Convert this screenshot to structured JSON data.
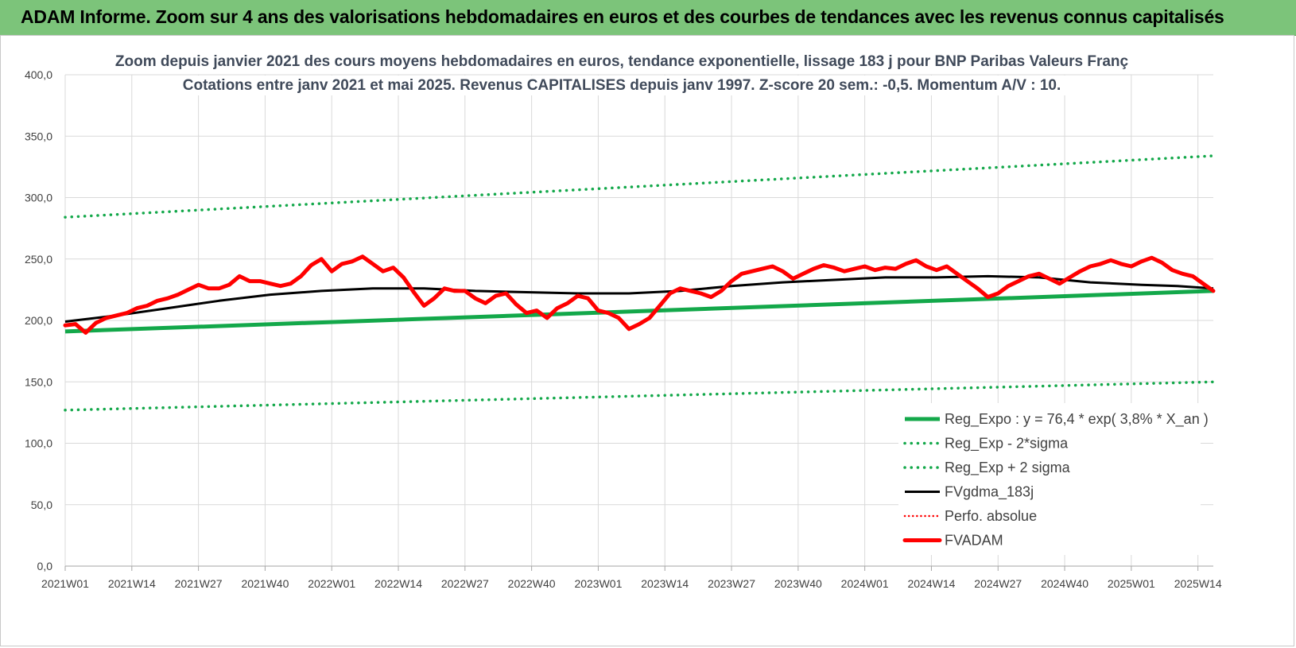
{
  "header": {
    "title": "ADAM Informe. Zoom sur 4 ans des valorisations hebdomadaires en euros et des courbes de tendances avec les revenus connus capitalisés"
  },
  "colors": {
    "banner": "#7cc47a",
    "green": "#13a84a",
    "red": "#ff0000",
    "black": "#000000",
    "grid": "#d9d9d9"
  },
  "chart_data": {
    "type": "line",
    "title": "Zoom depuis janvier 2021 des cours moyens hebdomadaires en euros, tendance exponentielle, lissage 183 j pour BNP Paribas Valeurs Franç",
    "subtitle": "Cotations entre janv 2021 et mai 2025. Revenus CAPITALISES depuis janv 1997. Z-score 20 sem.: -0,5. Momentum A/V : 10.",
    "ylim": [
      0,
      400
    ],
    "y_ticks": [
      "0,0",
      "50,0",
      "100,0",
      "150,0",
      "200,0",
      "250,0",
      "300,0",
      "350,0",
      "400,0"
    ],
    "x_ticks": [
      "2021W01",
      "2021W14",
      "2021W27",
      "2021W40",
      "2022W01",
      "2022W14",
      "2022W27",
      "2022W40",
      "2023W01",
      "2023W14",
      "2023W27",
      "2023W40",
      "2024W01",
      "2024W14",
      "2024W27",
      "2024W40",
      "2025W01",
      "2025W14"
    ],
    "x_weeks": 225,
    "grid": true,
    "legend_position": "bottom-right",
    "series": [
      {
        "name": "Reg_Expo : y = 76,4 * exp( 3,8% * X_an )",
        "style": "solid-thick",
        "color": "#13a84a",
        "points": [
          [
            0,
            191
          ],
          [
            224,
            224
          ]
        ]
      },
      {
        "name": "Reg_Exp - 2*sigma",
        "style": "dotted",
        "color": "#13a84a",
        "points": [
          [
            0,
            127
          ],
          [
            224,
            150
          ]
        ]
      },
      {
        "name": "Reg_Exp + 2 sigma",
        "style": "dotted",
        "color": "#13a84a",
        "points": [
          [
            0,
            284
          ],
          [
            224,
            334
          ]
        ]
      },
      {
        "name": "FVgdma_183j",
        "style": "solid",
        "color": "#000000",
        "points": [
          [
            0,
            199
          ],
          [
            10,
            204
          ],
          [
            20,
            210
          ],
          [
            30,
            216
          ],
          [
            40,
            221
          ],
          [
            50,
            224
          ],
          [
            60,
            226
          ],
          [
            70,
            226
          ],
          [
            80,
            224
          ],
          [
            90,
            223
          ],
          [
            100,
            222
          ],
          [
            110,
            222
          ],
          [
            120,
            224
          ],
          [
            130,
            228
          ],
          [
            140,
            231
          ],
          [
            150,
            233
          ],
          [
            160,
            235
          ],
          [
            170,
            235
          ],
          [
            180,
            236
          ],
          [
            190,
            235
          ],
          [
            200,
            231
          ],
          [
            210,
            229
          ],
          [
            217,
            228
          ],
          [
            224,
            226
          ]
        ]
      },
      {
        "name": "Perfo. absolue",
        "style": "dotted-thin",
        "color": "#ff0000",
        "points": []
      },
      {
        "name": "FVADAM",
        "style": "solid-thick",
        "color": "#ff0000",
        "points": [
          [
            0,
            196
          ],
          [
            2,
            197
          ],
          [
            4,
            190
          ],
          [
            6,
            198
          ],
          [
            8,
            202
          ],
          [
            10,
            204
          ],
          [
            12,
            206
          ],
          [
            14,
            210
          ],
          [
            16,
            212
          ],
          [
            18,
            216
          ],
          [
            20,
            218
          ],
          [
            22,
            221
          ],
          [
            24,
            225
          ],
          [
            26,
            229
          ],
          [
            28,
            226
          ],
          [
            30,
            226
          ],
          [
            32,
            229
          ],
          [
            34,
            236
          ],
          [
            36,
            232
          ],
          [
            38,
            232
          ],
          [
            40,
            230
          ],
          [
            42,
            228
          ],
          [
            44,
            230
          ],
          [
            46,
            236
          ],
          [
            48,
            245
          ],
          [
            50,
            250
          ],
          [
            52,
            240
          ],
          [
            54,
            246
          ],
          [
            56,
            248
          ],
          [
            58,
            252
          ],
          [
            60,
            246
          ],
          [
            62,
            240
          ],
          [
            64,
            243
          ],
          [
            66,
            235
          ],
          [
            68,
            223
          ],
          [
            70,
            212
          ],
          [
            72,
            218
          ],
          [
            74,
            226
          ],
          [
            76,
            224
          ],
          [
            78,
            224
          ],
          [
            80,
            218
          ],
          [
            82,
            214
          ],
          [
            84,
            220
          ],
          [
            86,
            222
          ],
          [
            88,
            213
          ],
          [
            90,
            206
          ],
          [
            92,
            208
          ],
          [
            94,
            202
          ],
          [
            96,
            210
          ],
          [
            98,
            214
          ],
          [
            100,
            220
          ],
          [
            102,
            218
          ],
          [
            104,
            208
          ],
          [
            106,
            206
          ],
          [
            108,
            202
          ],
          [
            110,
            193
          ],
          [
            112,
            197
          ],
          [
            114,
            202
          ],
          [
            116,
            212
          ],
          [
            118,
            222
          ],
          [
            120,
            226
          ],
          [
            122,
            224
          ],
          [
            124,
            222
          ],
          [
            126,
            219
          ],
          [
            128,
            224
          ],
          [
            130,
            232
          ],
          [
            132,
            238
          ],
          [
            134,
            240
          ],
          [
            136,
            242
          ],
          [
            138,
            244
          ],
          [
            140,
            240
          ],
          [
            142,
            234
          ],
          [
            144,
            238
          ],
          [
            146,
            242
          ],
          [
            148,
            245
          ],
          [
            150,
            243
          ],
          [
            152,
            240
          ],
          [
            154,
            242
          ],
          [
            156,
            244
          ],
          [
            158,
            241
          ],
          [
            160,
            243
          ],
          [
            162,
            242
          ],
          [
            164,
            246
          ],
          [
            166,
            249
          ],
          [
            168,
            244
          ],
          [
            170,
            241
          ],
          [
            172,
            244
          ],
          [
            174,
            238
          ],
          [
            176,
            232
          ],
          [
            178,
            226
          ],
          [
            180,
            219
          ],
          [
            182,
            222
          ],
          [
            184,
            228
          ],
          [
            186,
            232
          ],
          [
            188,
            236
          ],
          [
            190,
            238
          ],
          [
            192,
            234
          ],
          [
            194,
            230
          ],
          [
            196,
            235
          ],
          [
            198,
            240
          ],
          [
            200,
            244
          ],
          [
            202,
            246
          ],
          [
            204,
            249
          ],
          [
            206,
            246
          ],
          [
            208,
            244
          ],
          [
            210,
            248
          ],
          [
            212,
            251
          ],
          [
            214,
            247
          ],
          [
            216,
            241
          ],
          [
            218,
            238
          ],
          [
            220,
            236
          ],
          [
            222,
            230
          ],
          [
            224,
            224
          ]
        ]
      }
    ]
  }
}
